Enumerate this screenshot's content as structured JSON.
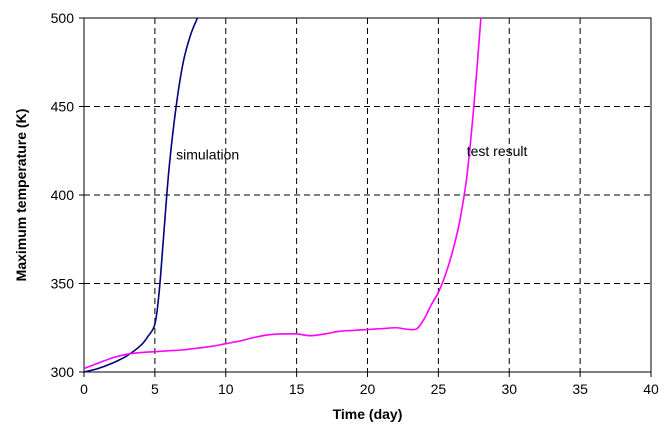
{
  "chart_data": {
    "type": "line",
    "xlabel": "Time (day)",
    "ylabel": "Maximum temperature (K)",
    "xlim": [
      0,
      40
    ],
    "ylim": [
      300,
      500
    ],
    "xticks": [
      0,
      5,
      10,
      15,
      20,
      25,
      30,
      35,
      40
    ],
    "yticks": [
      300,
      350,
      400,
      450,
      500
    ],
    "grid": {
      "style": "dashed",
      "x": true,
      "y": true
    },
    "series": [
      {
        "name": "simulation",
        "color": "#000080",
        "x": [
          0,
          1,
          2,
          3,
          4,
          4.5,
          5,
          5.3,
          5.6,
          6,
          6.5,
          7,
          7.5,
          8
        ],
        "y": [
          300,
          302,
          305,
          309,
          315,
          320,
          327,
          345,
          375,
          415,
          450,
          475,
          490,
          500
        ]
      },
      {
        "name": "test result",
        "color": "#ff00ff",
        "x": [
          0,
          1,
          2,
          3,
          4,
          5,
          6,
          7,
          8,
          9,
          10,
          11,
          12,
          13,
          14,
          15,
          16,
          17,
          18,
          19,
          20,
          21,
          22,
          22.5,
          23,
          23.5,
          24,
          24.5,
          25,
          25.5,
          26,
          26.5,
          27,
          27.5,
          28
        ],
        "y": [
          302,
          305,
          308,
          310,
          311,
          311.5,
          312,
          312.5,
          313.5,
          314.5,
          316,
          317.5,
          319.5,
          321,
          321.5,
          321.5,
          320.5,
          321.5,
          323,
          323.5,
          324,
          324.5,
          325,
          324.5,
          324,
          324.5,
          330,
          338,
          345,
          355,
          368,
          385,
          410,
          450,
          500
        ]
      }
    ],
    "annotations": [
      {
        "text": "simulation",
        "x": 6.5,
        "y": 420
      },
      {
        "text": "test result",
        "x": 27,
        "y": 422
      }
    ]
  }
}
